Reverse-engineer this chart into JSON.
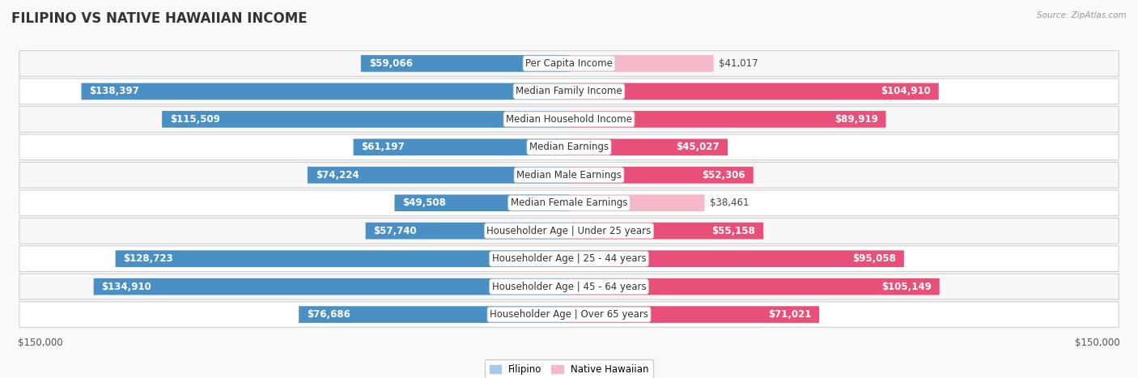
{
  "title": "FILIPINO VS NATIVE HAWAIIAN INCOME",
  "source": "Source: ZipAtlas.com",
  "categories": [
    "Per Capita Income",
    "Median Family Income",
    "Median Household Income",
    "Median Earnings",
    "Median Male Earnings",
    "Median Female Earnings",
    "Householder Age | Under 25 years",
    "Householder Age | 25 - 44 years",
    "Householder Age | 45 - 64 years",
    "Householder Age | Over 65 years"
  ],
  "filipino_values": [
    59066,
    138397,
    115509,
    61197,
    74224,
    49508,
    57740,
    128723,
    134910,
    76686
  ],
  "hawaiian_values": [
    41017,
    104910,
    89919,
    45027,
    52306,
    38461,
    55158,
    95058,
    105149,
    71021
  ],
  "filipino_labels": [
    "$59,066",
    "$138,397",
    "$115,509",
    "$61,197",
    "$74,224",
    "$49,508",
    "$57,740",
    "$128,723",
    "$134,910",
    "$76,686"
  ],
  "hawaiian_labels": [
    "$41,017",
    "$104,910",
    "$89,919",
    "$45,027",
    "$52,306",
    "$38,461",
    "$55,158",
    "$95,058",
    "$105,149",
    "$71,021"
  ],
  "max_value": 150000,
  "filipino_color_light": "#a8c8e8",
  "filipino_color_dark": "#4a90c4",
  "hawaiian_color_light": "#f4b8c8",
  "hawaiian_color_dark": "#e8507a",
  "row_bg_even": "#f7f7f7",
  "row_bg_odd": "#ffffff",
  "fig_bg": "#f9f9f9",
  "label_fontsize": 8.5,
  "title_fontsize": 12,
  "legend_fontsize": 8.5,
  "axis_label_fontsize": 8.5,
  "inside_label_threshold": 0.3
}
